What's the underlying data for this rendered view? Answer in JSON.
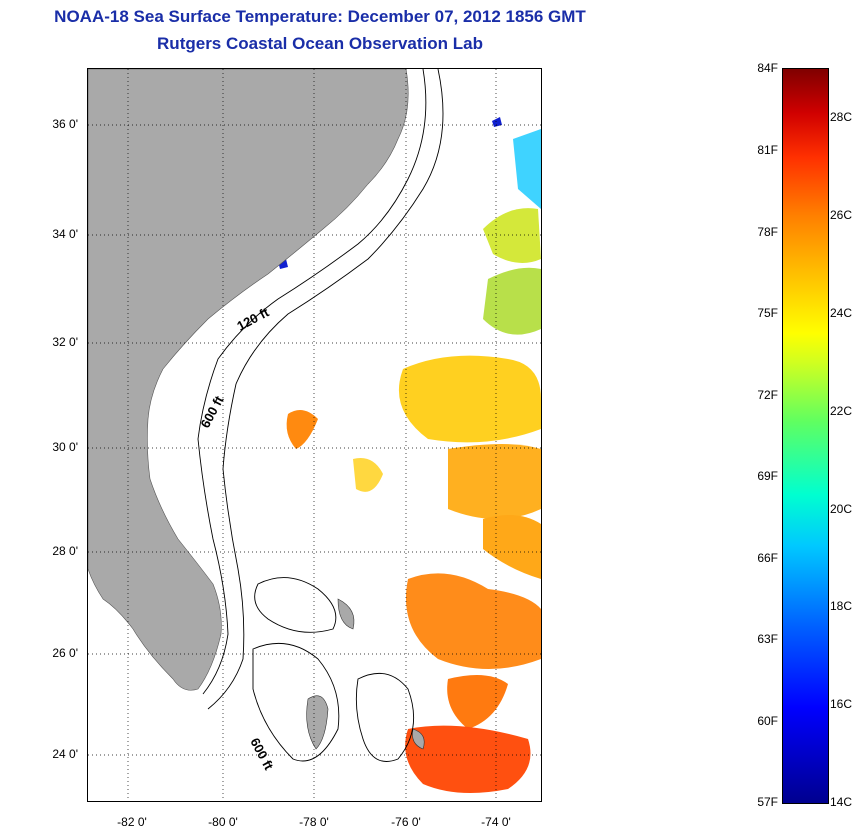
{
  "header": {
    "title_line1": "NOAA-18 Sea Surface Temperature:  December 07, 2012 1856 GMT",
    "title_line2": "Rutgers Coastal Ocean Observation Lab"
  },
  "map": {
    "latitude_labels": [
      "36 0'",
      "34 0'",
      "32 0'",
      "30 0'",
      "28 0'",
      "26 0'",
      "24 0'"
    ],
    "longitude_labels": [
      "-82 0'",
      "-80 0'",
      "-78 0'",
      "-76 0'",
      "-74 0'"
    ],
    "contour_labels": [
      "120 ft",
      "600 ft",
      "600 ft"
    ],
    "land_color": "#a9a9a9",
    "ocean_color": "#ffffff"
  },
  "colorbar": {
    "fahrenheit_labels": [
      "84F",
      "81F",
      "78F",
      "75F",
      "72F",
      "69F",
      "66F",
      "63F",
      "60F",
      "57F"
    ],
    "celsius_labels": [
      "28C",
      "26C",
      "24C",
      "22C",
      "20C",
      "18C",
      "16C",
      "14C"
    ],
    "colors": [
      "#00008f",
      "#0000ff",
      "#00c8ff",
      "#60ff60",
      "#ffff00",
      "#ff8000",
      "#d00000",
      "#800000"
    ]
  }
}
